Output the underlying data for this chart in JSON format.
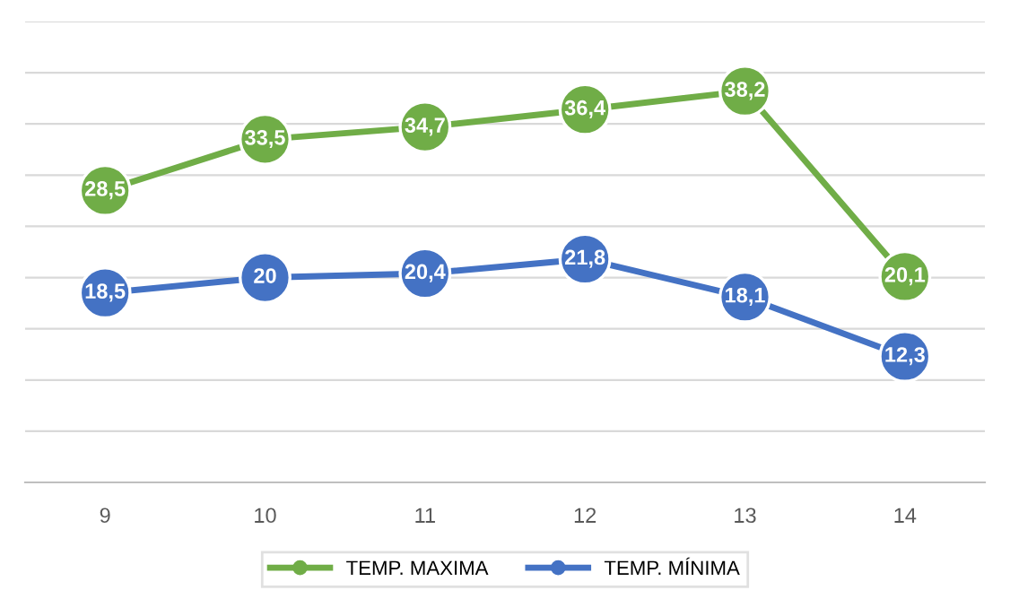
{
  "chart_data": {
    "type": "line",
    "categories": [
      "9",
      "10",
      "11",
      "12",
      "13",
      "14"
    ],
    "series": [
      {
        "name": "TEMP. MAXIMA",
        "color": "#70ad47",
        "values": [
          28.5,
          33.5,
          34.7,
          36.4,
          38.2,
          20.1
        ],
        "value_labels": [
          "28,5",
          "33,5",
          "34,7",
          "36,4",
          "38,2",
          "20,1"
        ]
      },
      {
        "name": "TEMP. MÍNIMA",
        "color": "#4472c4",
        "values": [
          18.5,
          20,
          20.4,
          21.8,
          18.1,
          12.3
        ],
        "value_labels": [
          "18,5",
          "20",
          "20,4",
          "21,8",
          "18,1",
          "12,3"
        ]
      }
    ],
    "ylim": [
      0,
      45
    ],
    "yticks": [
      {
        "value": 0,
        "label": null
      },
      {
        "value": 5,
        "label": null
      },
      {
        "value": 10,
        "label": null
      },
      {
        "value": 15,
        "label": null
      },
      {
        "value": 20,
        "label": null
      },
      {
        "value": 25,
        "label": null
      },
      {
        "value": 30,
        "label": null
      },
      {
        "value": 35,
        "label": null
      },
      {
        "value": 40,
        "label": null
      },
      {
        "value": 45,
        "label": null
      }
    ],
    "tick_labels": "x",
    "grid": "y",
    "legend": "bottom",
    "marker": "circle",
    "line_style": "solid"
  }
}
